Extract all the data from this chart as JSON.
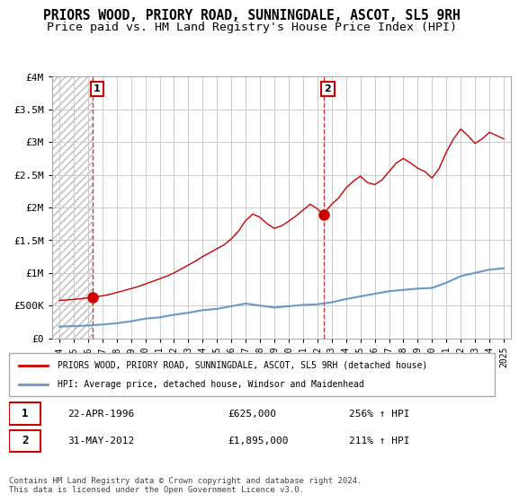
{
  "title": "PRIORS WOOD, PRIORY ROAD, SUNNINGDALE, ASCOT, SL5 9RH",
  "subtitle": "Price paid vs. HM Land Registry's House Price Index (HPI)",
  "title_fontsize": 10.5,
  "subtitle_fontsize": 9.5,
  "ylim": [
    0,
    4000000
  ],
  "yticks": [
    0,
    500000,
    1000000,
    1500000,
    2000000,
    2500000,
    3000000,
    3500000,
    4000000
  ],
  "ytick_labels": [
    "£0",
    "£500K",
    "£1M",
    "£1.5M",
    "£2M",
    "£2.5M",
    "£3M",
    "£3.5M",
    "£4M"
  ],
  "xlim_start": 1993.5,
  "xlim_end": 2025.5,
  "xticks": [
    1994,
    1995,
    1996,
    1997,
    1998,
    1999,
    2000,
    2001,
    2002,
    2003,
    2004,
    2005,
    2006,
    2007,
    2008,
    2009,
    2010,
    2011,
    2012,
    2013,
    2014,
    2015,
    2016,
    2017,
    2018,
    2019,
    2020,
    2021,
    2022,
    2023,
    2024,
    2025
  ],
  "hatch_end": 1996.33,
  "sale1_x": 1996.33,
  "sale1_y": 625000,
  "sale1_label": "1",
  "sale1_date": "22-APR-1996",
  "sale1_price": "£625,000",
  "sale1_hpi": "256% ↑ HPI",
  "sale2_x": 2012.42,
  "sale2_y": 1895000,
  "sale2_label": "2",
  "sale2_date": "31-MAY-2012",
  "sale2_price": "£1,895,000",
  "sale2_hpi": "211% ↑ HPI",
  "property_line_color": "#cc0000",
  "hpi_line_color": "#6699cc",
  "grid_color": "#cccccc",
  "hatch_color": "#cccccc",
  "dashed_line_color": "#cc0000",
  "legend_label1": "PRIORS WOOD, PRIORY ROAD, SUNNINGDALE, ASCOT, SL5 9RH (detached house)",
  "legend_label2": "HPI: Average price, detached house, Windsor and Maidenhead",
  "footer": "Contains HM Land Registry data © Crown copyright and database right 2024.\nThis data is licensed under the Open Government Licence v3.0.",
  "property_years": [
    1994.0,
    1994.5,
    1995.0,
    1995.5,
    1996.0,
    1996.33,
    1996.5,
    1997.0,
    1997.5,
    1998.0,
    1998.5,
    1999.0,
    1999.5,
    2000.0,
    2000.5,
    2001.0,
    2001.5,
    2002.0,
    2002.5,
    2003.0,
    2003.5,
    2004.0,
    2004.5,
    2005.0,
    2005.5,
    2006.0,
    2006.5,
    2007.0,
    2007.5,
    2008.0,
    2008.5,
    2009.0,
    2009.5,
    2010.0,
    2010.5,
    2011.0,
    2011.5,
    2012.0,
    2012.42,
    2012.5,
    2013.0,
    2013.5,
    2014.0,
    2014.5,
    2015.0,
    2015.5,
    2016.0,
    2016.5,
    2017.0,
    2017.5,
    2018.0,
    2018.5,
    2019.0,
    2019.5,
    2020.0,
    2020.5,
    2021.0,
    2021.5,
    2022.0,
    2022.5,
    2023.0,
    2023.5,
    2024.0,
    2024.5,
    2025.0
  ],
  "property_values": [
    580000,
    585000,
    595000,
    605000,
    618000,
    625000,
    632000,
    650000,
    670000,
    700000,
    730000,
    760000,
    790000,
    830000,
    870000,
    910000,
    950000,
    1000000,
    1060000,
    1120000,
    1180000,
    1250000,
    1310000,
    1370000,
    1430000,
    1520000,
    1640000,
    1800000,
    1900000,
    1850000,
    1750000,
    1680000,
    1720000,
    1790000,
    1870000,
    1960000,
    2050000,
    1980000,
    1895000,
    1920000,
    2050000,
    2150000,
    2300000,
    2400000,
    2480000,
    2380000,
    2350000,
    2420000,
    2550000,
    2680000,
    2750000,
    2680000,
    2600000,
    2550000,
    2450000,
    2600000,
    2850000,
    3050000,
    3200000,
    3100000,
    2980000,
    3050000,
    3150000,
    3100000,
    3050000
  ],
  "hpi_years": [
    1994.0,
    1995.0,
    1996.0,
    1997.0,
    1998.0,
    1999.0,
    2000.0,
    2001.0,
    2002.0,
    2003.0,
    2004.0,
    2005.0,
    2006.0,
    2007.0,
    2008.0,
    2009.0,
    2010.0,
    2011.0,
    2012.0,
    2013.0,
    2014.0,
    2015.0,
    2016.0,
    2017.0,
    2018.0,
    2019.0,
    2020.0,
    2021.0,
    2022.0,
    2023.0,
    2024.0,
    2025.0
  ],
  "hpi_values": [
    180000,
    185000,
    195000,
    210000,
    230000,
    260000,
    300000,
    320000,
    360000,
    390000,
    430000,
    450000,
    490000,
    530000,
    500000,
    470000,
    490000,
    510000,
    520000,
    550000,
    600000,
    640000,
    680000,
    720000,
    740000,
    760000,
    770000,
    850000,
    950000,
    1000000,
    1050000,
    1070000
  ]
}
